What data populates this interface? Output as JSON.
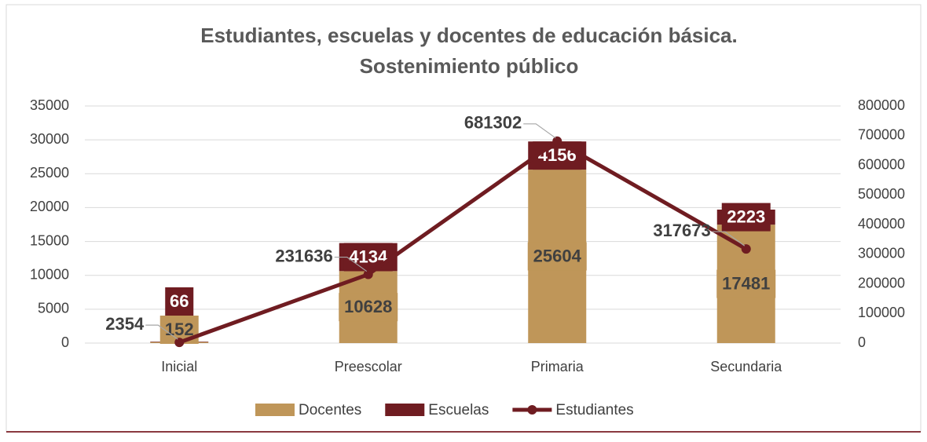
{
  "chart_data": {
    "type": "bar",
    "title": [
      "Estudiantes, escuelas y docentes de educación básica.",
      "Sostenimiento público"
    ],
    "categories": [
      "Inicial",
      "Preescolar",
      "Primaria",
      "Secundaria"
    ],
    "series": [
      {
        "name": "Docentes",
        "type": "bar",
        "color": "#bf9659",
        "values": [
          152,
          10628,
          25604,
          17481
        ]
      },
      {
        "name": "Escuelas",
        "type": "bar",
        "color": "#6f1c21",
        "values": [
          66,
          4134,
          4156,
          2223
        ]
      },
      {
        "name": "Estudiantes",
        "type": "line",
        "axis": "y2",
        "color": "#6f1c21",
        "values": [
          2354,
          231636,
          681302,
          317673
        ]
      }
    ],
    "stacked": true,
    "ylim": [
      0,
      35000
    ],
    "yticks": [
      0,
      5000,
      10000,
      15000,
      20000,
      25000,
      30000,
      35000
    ],
    "y2lim": [
      0,
      800000
    ],
    "y2ticks": [
      0,
      100000,
      200000,
      300000,
      400000,
      500000,
      600000,
      700000,
      800000
    ],
    "grid": true,
    "legend": "bottom"
  }
}
